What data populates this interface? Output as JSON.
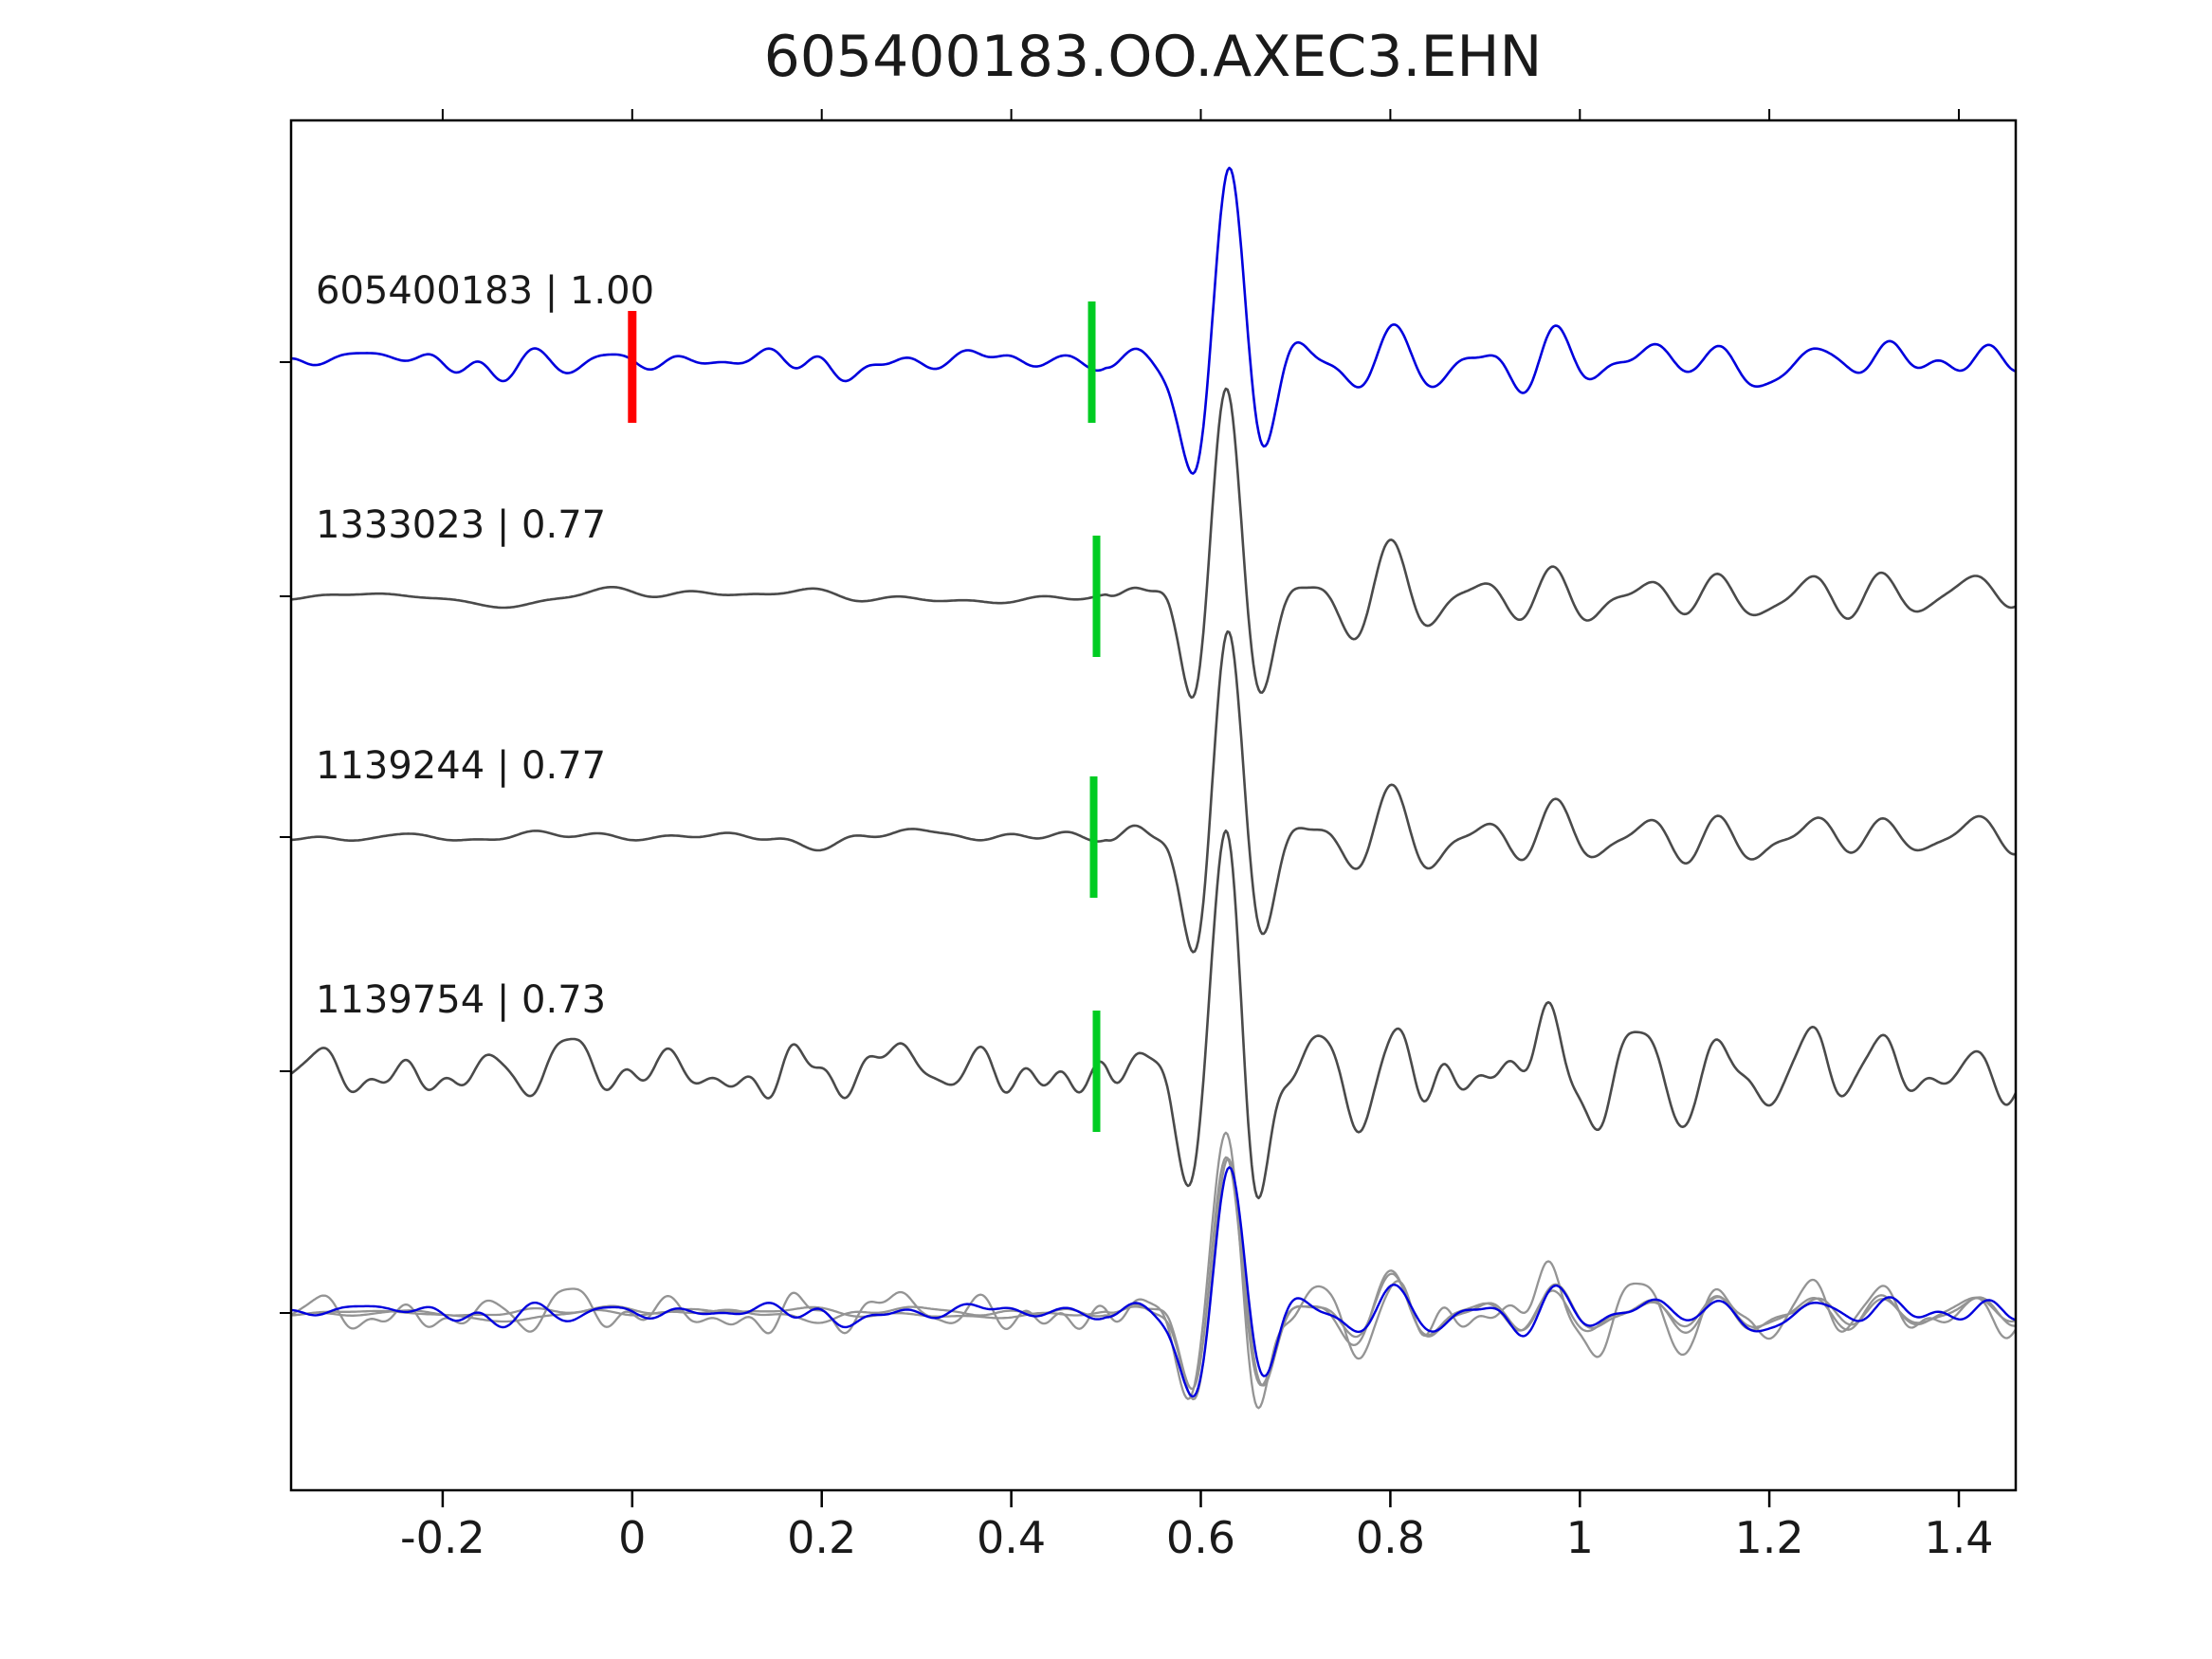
{
  "chart_data": {
    "type": "line",
    "title": "605400183.OO.AXEC3.EHN",
    "xlabel": "",
    "ylabel": "",
    "xlim": [
      -0.36,
      1.46
    ],
    "x_ticks": [
      -0.2,
      0,
      0.2,
      0.4,
      0.6,
      0.8,
      1,
      1.2,
      1.4
    ],
    "x_tick_labels": [
      "-0.2",
      "0",
      "0.2",
      "0.4",
      "0.6",
      "0.8",
      "1",
      "1.2",
      "1.4"
    ],
    "grid": false,
    "legend": "none",
    "arrival_x": 0.5,
    "peak_x": 0.615,
    "reference_marker": {
      "x": 0.0,
      "color": "#ff0000",
      "trace": "605400183"
    },
    "pick_marker_color": "#00cc22",
    "traces": [
      {
        "id": "605400183",
        "label": "605400183 | 1.00",
        "similarity": 1.0,
        "color": "#0000dd",
        "pick_x": 0.485,
        "has_ref_marker": true,
        "seed": 11,
        "noise": 20,
        "amp": 150,
        "phase": 0.0,
        "noiseF": 1.0
      },
      {
        "id": "1333023",
        "label": "1333023 | 0.77",
        "similarity": 0.77,
        "color": "#4a4a4a",
        "pick_x": 0.49,
        "has_ref_marker": false,
        "seed": 22,
        "noise": 12,
        "amp": 158,
        "phase": 0.25,
        "noiseF": 0.65
      },
      {
        "id": "1139244",
        "label": "1139244 | 0.77",
        "similarity": 0.77,
        "color": "#4a4a4a",
        "pick_x": 0.487,
        "has_ref_marker": false,
        "seed": 33,
        "noise": 14,
        "amp": 158,
        "phase": 0.12,
        "noiseF": 0.7
      },
      {
        "id": "1139754",
        "label": "1139754 | 0.73",
        "similarity": 0.73,
        "color": "#4a4a4a",
        "pick_x": 0.49,
        "has_ref_marker": false,
        "seed": 44,
        "noise": 34,
        "amp": 165,
        "phase": 0.35,
        "noiseF": 1.1
      }
    ],
    "overlay": {
      "scale": 0.75,
      "gray_color": "#949494",
      "highlight_color": "#0000dd"
    }
  }
}
